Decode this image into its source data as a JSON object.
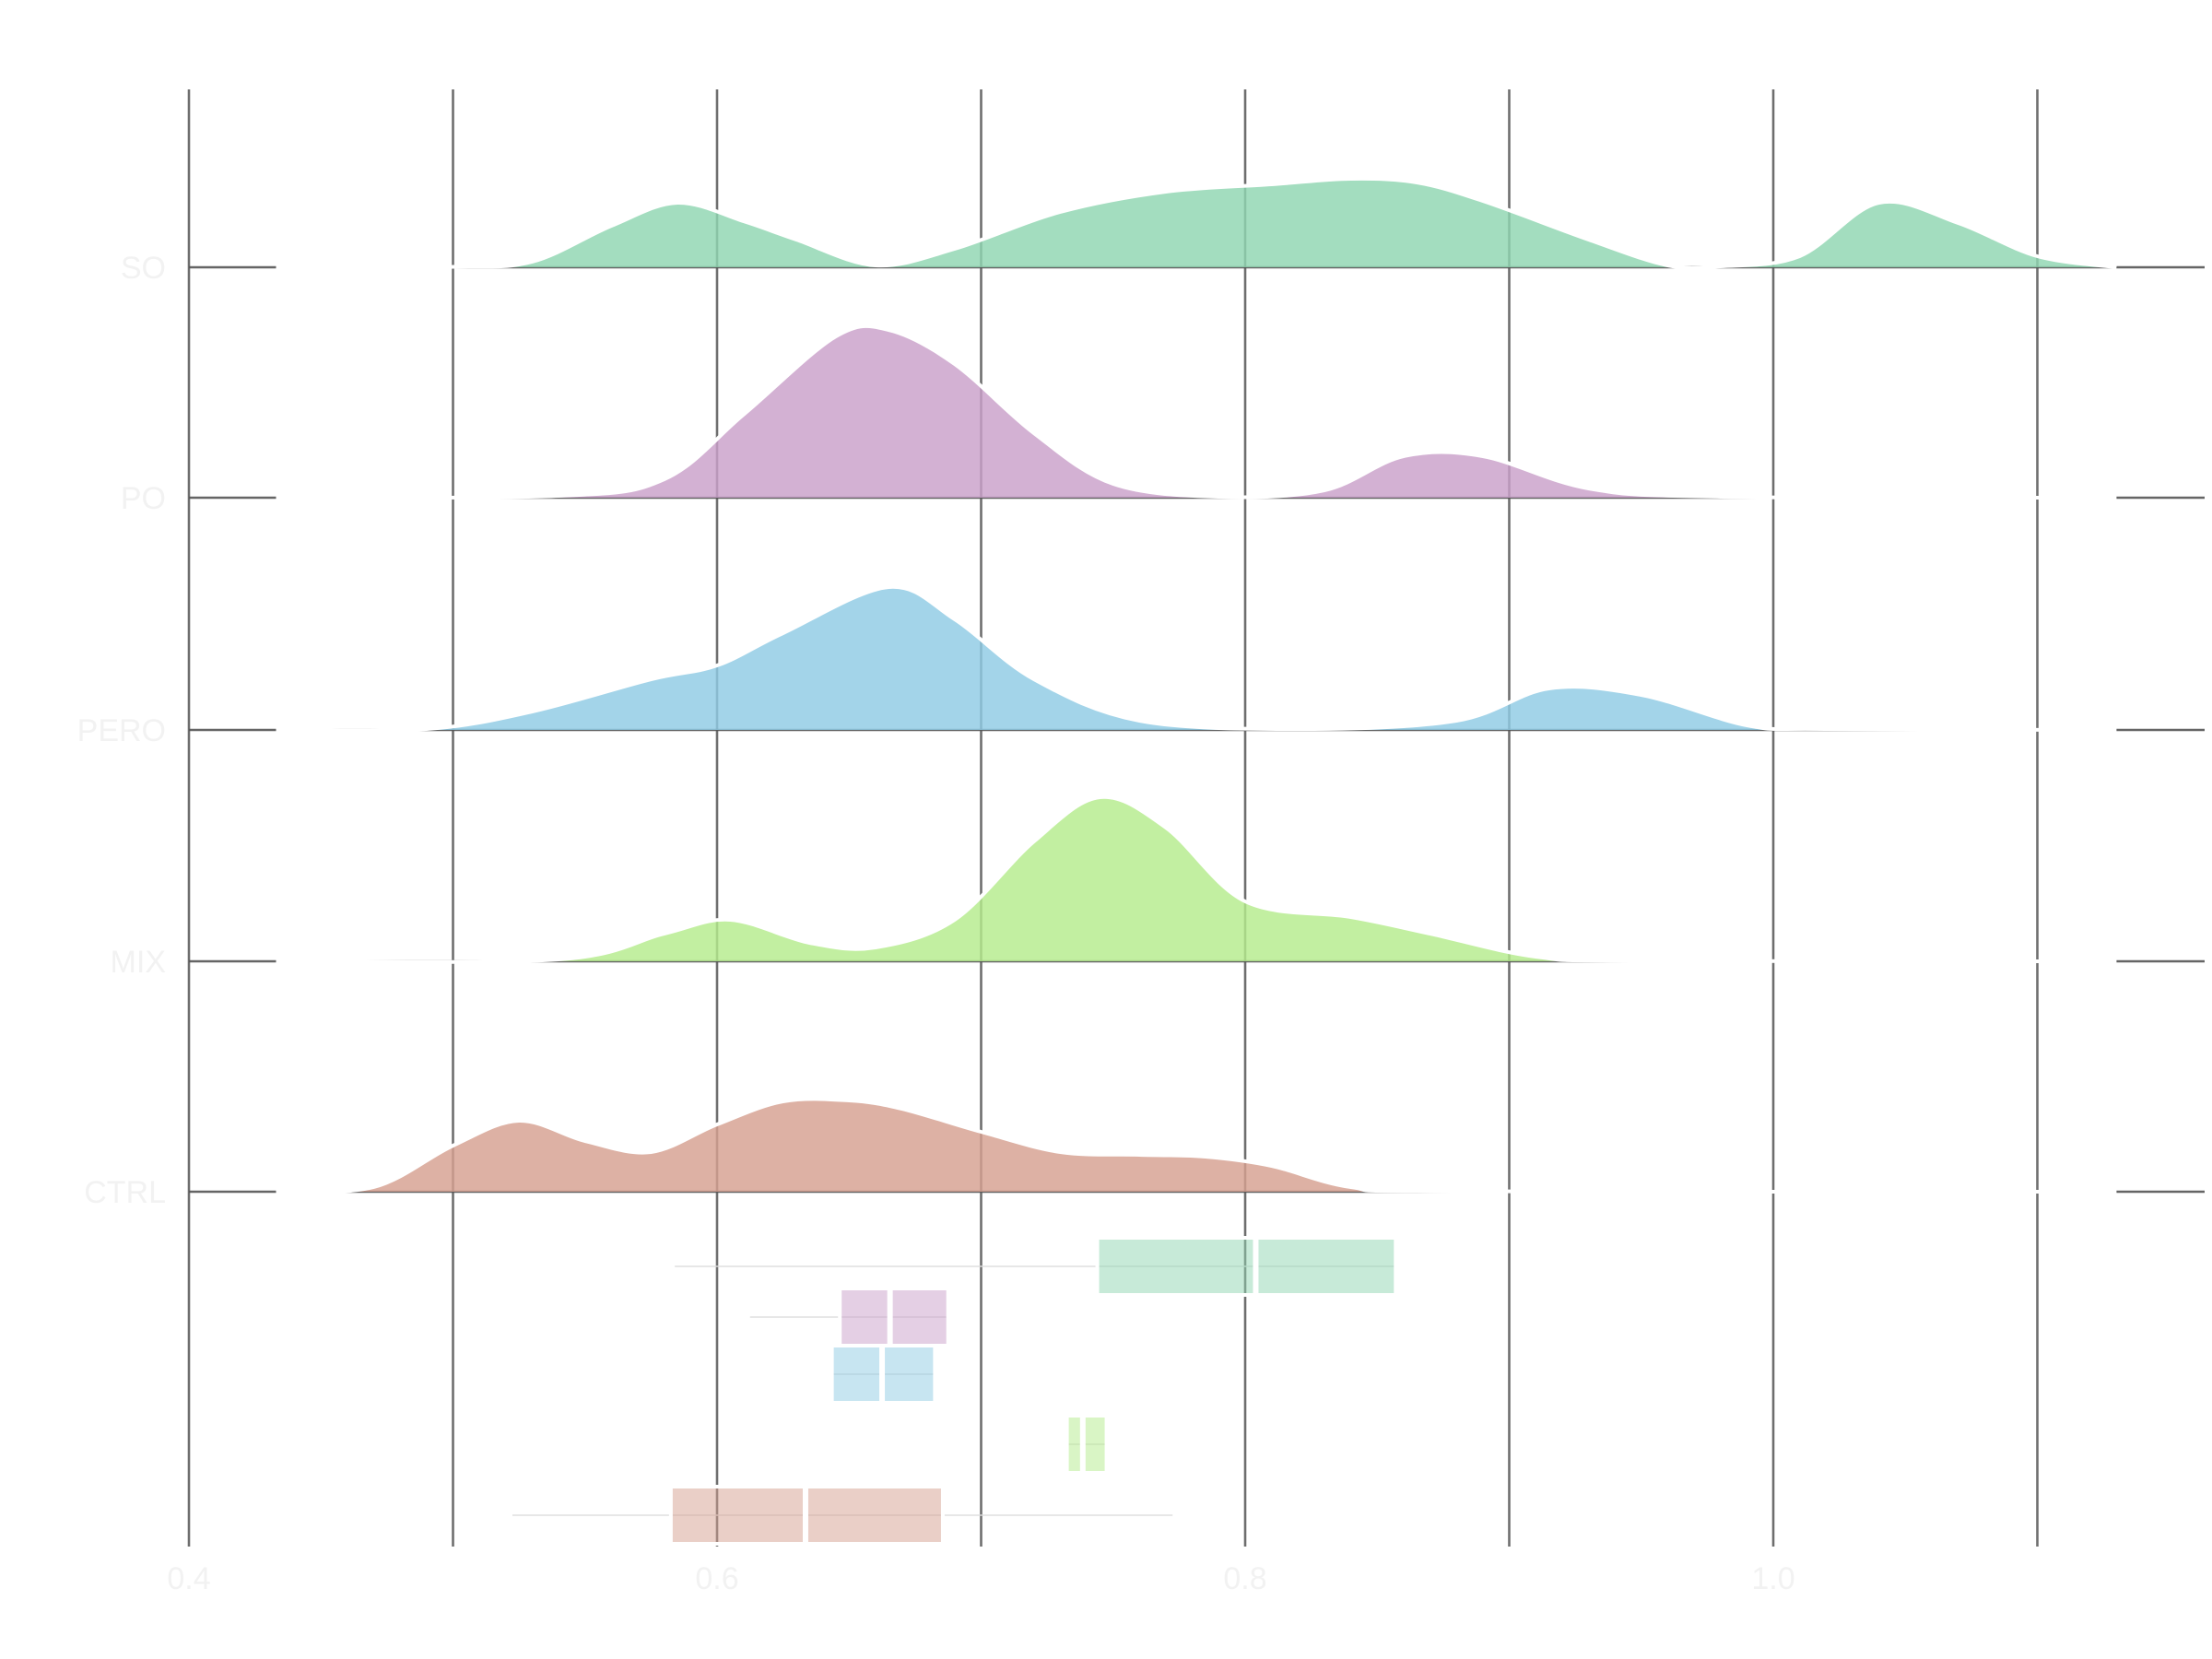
{
  "chart_data": {
    "type": "ridgeline",
    "title": "",
    "xlabel": "",
    "ylabel": "",
    "xlim": [
      0.4,
      1.13
    ],
    "x_ticks": [
      0.4,
      0.6,
      0.8,
      1.0
    ],
    "x_tick_labels": [
      "0.4",
      "0.6",
      "0.8",
      "1.0"
    ],
    "x_minor_gridlines": [
      0.5,
      0.7,
      0.9,
      1.1
    ],
    "grid": true,
    "categories": [
      "SO",
      "PO",
      "PERO",
      "MIX",
      "CTRL"
    ],
    "series": [
      {
        "name": "SO",
        "color": "#8fd5b1",
        "density": [
          [
            0.433,
            0
          ],
          [
            0.5,
            0.005
          ],
          [
            0.53,
            0.06
          ],
          [
            0.56,
            0.45
          ],
          [
            0.585,
            0.7
          ],
          [
            0.61,
            0.5
          ],
          [
            0.63,
            0.3
          ],
          [
            0.66,
            0.02
          ],
          [
            0.69,
            0.2
          ],
          [
            0.73,
            0.6
          ],
          [
            0.77,
            0.82
          ],
          [
            0.81,
            0.9
          ],
          [
            0.84,
            0.96
          ],
          [
            0.865,
            0.92
          ],
          [
            0.89,
            0.72
          ],
          [
            0.93,
            0.3
          ],
          [
            0.96,
            0.02
          ],
          [
            0.98,
            0.01
          ],
          [
            1.01,
            0.12
          ],
          [
            1.04,
            0.7
          ],
          [
            1.07,
            0.48
          ],
          [
            1.1,
            0.12
          ],
          [
            1.13,
            0
          ]
        ],
        "box": {
          "q1": 0.744,
          "median": 0.804,
          "q3": 0.857,
          "whisker_low": 0.584,
          "whisker_high": 0.857
        }
      },
      {
        "name": "PO",
        "color": "#c9a0c9",
        "density": [
          [
            0.433,
            0
          ],
          [
            0.54,
            0.02
          ],
          [
            0.58,
            0.2
          ],
          [
            0.61,
            0.9
          ],
          [
            0.645,
            1.75
          ],
          [
            0.665,
            1.82
          ],
          [
            0.69,
            1.45
          ],
          [
            0.72,
            0.7
          ],
          [
            0.75,
            0.15
          ],
          [
            0.79,
            0.01
          ],
          [
            0.83,
            0.08
          ],
          [
            0.86,
            0.45
          ],
          [
            0.89,
            0.45
          ],
          [
            0.93,
            0.1
          ],
          [
            0.98,
            0.01
          ],
          [
            1.13,
            0
          ]
        ],
        "box": {
          "q1": 0.6465,
          "median": 0.6655,
          "q3": 0.6875,
          "whisker_low": 0.6125,
          "whisker_high": 0.6875
        }
      },
      {
        "name": "PERO",
        "color": "#8fcbe4",
        "density": [
          [
            0.433,
            0
          ],
          [
            0.49,
            0.01
          ],
          [
            0.53,
            0.2
          ],
          [
            0.575,
            0.55
          ],
          [
            0.6,
            0.7
          ],
          [
            0.625,
            1.05
          ],
          [
            0.665,
            1.55
          ],
          [
            0.69,
            1.2
          ],
          [
            0.72,
            0.55
          ],
          [
            0.76,
            0.1
          ],
          [
            0.82,
            0.01
          ],
          [
            0.88,
            0.1
          ],
          [
            0.915,
            0.45
          ],
          [
            0.95,
            0.38
          ],
          [
            0.99,
            0.05
          ],
          [
            1.02,
            0.01
          ],
          [
            1.13,
            0
          ]
        ],
        "box": {
          "q1": 0.6435,
          "median": 0.6625,
          "q3": 0.6825,
          "whisker_low": 0.6435,
          "whisker_high": 0.6825
        }
      },
      {
        "name": "MIX",
        "color": "#b4eb8c",
        "density": [
          [
            0.433,
            0
          ],
          [
            0.54,
            0.02
          ],
          [
            0.58,
            0.3
          ],
          [
            0.605,
            0.45
          ],
          [
            0.635,
            0.2
          ],
          [
            0.66,
            0.15
          ],
          [
            0.69,
            0.45
          ],
          [
            0.72,
            1.3
          ],
          [
            0.745,
            1.78
          ],
          [
            0.77,
            1.45
          ],
          [
            0.8,
            0.65
          ],
          [
            0.84,
            0.48
          ],
          [
            0.87,
            0.3
          ],
          [
            0.91,
            0.05
          ],
          [
            0.95,
            0.005
          ],
          [
            1.13,
            0
          ]
        ],
        "box": {
          "q1": 0.7325,
          "median": 0.7385,
          "q3": 0.7475,
          "whisker_low": 0.7325,
          "whisker_high": 0.7475
        }
      },
      {
        "name": "CTRL",
        "color": "#d6a090",
        "density": [
          [
            0.433,
            0
          ],
          [
            0.47,
            0.05
          ],
          [
            0.5,
            0.5
          ],
          [
            0.525,
            0.77
          ],
          [
            0.55,
            0.55
          ],
          [
            0.575,
            0.43
          ],
          [
            0.6,
            0.73
          ],
          [
            0.625,
            0.98
          ],
          [
            0.65,
            0.99
          ],
          [
            0.67,
            0.9
          ],
          [
            0.7,
            0.65
          ],
          [
            0.73,
            0.43
          ],
          [
            0.76,
            0.4
          ],
          [
            0.785,
            0.38
          ],
          [
            0.81,
            0.28
          ],
          [
            0.84,
            0.05
          ],
          [
            0.88,
            0.005
          ],
          [
            1.13,
            0
          ]
        ],
        "box": {
          "q1": 0.5825,
          "median": 0.6335,
          "q3": 0.6855,
          "whisker_low": 0.5225,
          "whisker_high": 0.7725
        }
      }
    ]
  }
}
